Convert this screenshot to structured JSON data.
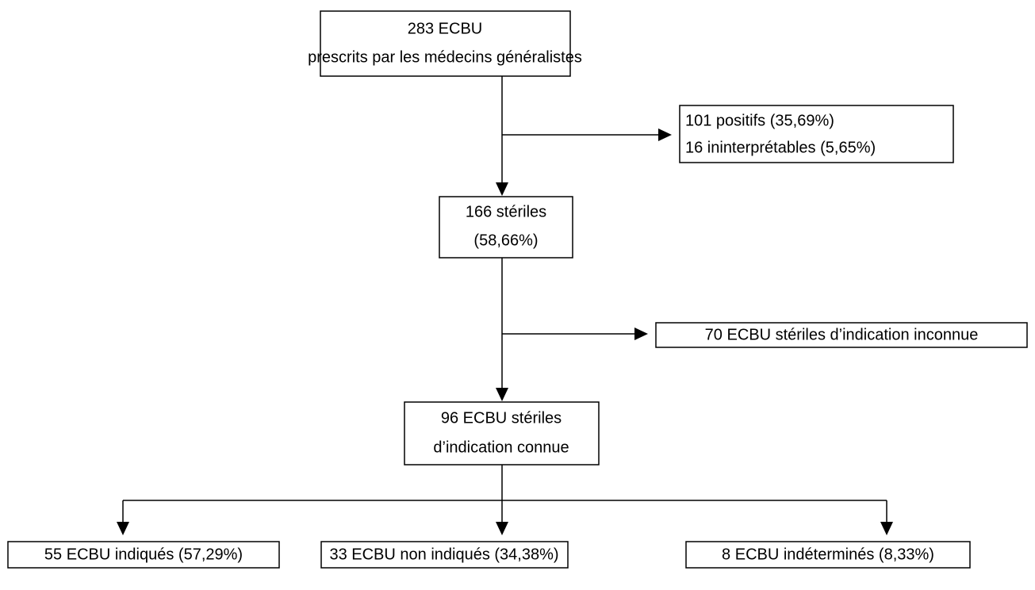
{
  "nodes": [
    {
      "lines": [
        "283 ECBU",
        "prescrits par les médecins généralistes"
      ]
    },
    {
      "lines": [
        "101 positifs (35,69%)",
        "16 ininterprétables (5,65%)"
      ]
    },
    {
      "lines": [
        "166 stériles",
        "(58,66%)"
      ]
    },
    {
      "lines": [
        "70 ECBU stériles d’indication inconnue"
      ]
    },
    {
      "lines": [
        "96 ECBU stériles",
        "d’indication connue"
      ]
    },
    {
      "lines": [
        "55 ECBU indiqués (57,29%)"
      ]
    },
    {
      "lines": [
        "33 ECBU non indiqués (34,38%)"
      ]
    },
    {
      "lines": [
        "8 ECBU indéterminés (8,33%)"
      ]
    }
  ]
}
